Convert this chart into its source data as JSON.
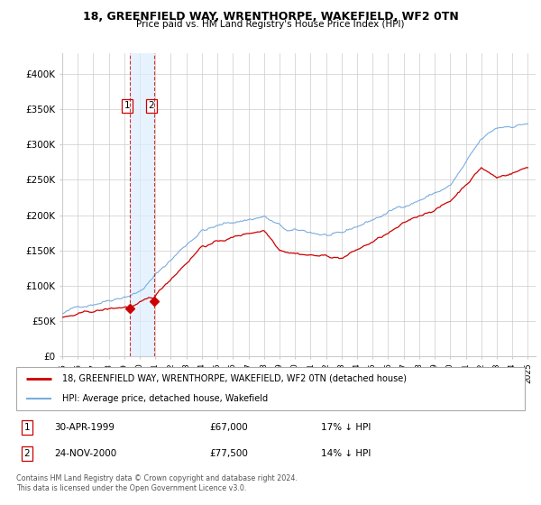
{
  "title": "18, GREENFIELD WAY, WRENTHORPE, WAKEFIELD, WF2 0TN",
  "subtitle": "Price paid vs. HM Land Registry's House Price Index (HPI)",
  "legend_line1": "18, GREENFIELD WAY, WRENTHORPE, WAKEFIELD, WF2 0TN (detached house)",
  "legend_line2": "HPI: Average price, detached house, Wakefield",
  "footnote": "Contains HM Land Registry data © Crown copyright and database right 2024.\nThis data is licensed under the Open Government Licence v3.0.",
  "transaction1": {
    "label": "1",
    "date": "30-APR-1999",
    "price": "£67,000",
    "note": "17% ↓ HPI"
  },
  "transaction2": {
    "label": "2",
    "date": "24-NOV-2000",
    "price": "£77,500",
    "note": "14% ↓ HPI"
  },
  "hpi_color": "#7aadde",
  "price_color": "#cc0000",
  "transaction_color": "#cc0000",
  "marker_color": "#cc0000",
  "background_color": "#ffffff",
  "grid_color": "#cccccc",
  "vline_fill_color": "#dceeff",
  "ylim": [
    0,
    420000
  ],
  "yticks": [
    0,
    50000,
    100000,
    150000,
    200000,
    250000,
    300000,
    350000,
    400000
  ],
  "ytick_labels": [
    "£0",
    "£50K",
    "£100K",
    "£150K",
    "£200K",
    "£250K",
    "£300K",
    "£350K",
    "£400K"
  ],
  "x_start_year": 1995,
  "x_end_year": 2025,
  "transaction_points": [
    {
      "year": 1999.33,
      "price": 67000,
      "label": "1"
    },
    {
      "year": 2000.9,
      "price": 77500,
      "label": "2"
    }
  ],
  "vline_years": [
    1999.33,
    2000.9
  ]
}
